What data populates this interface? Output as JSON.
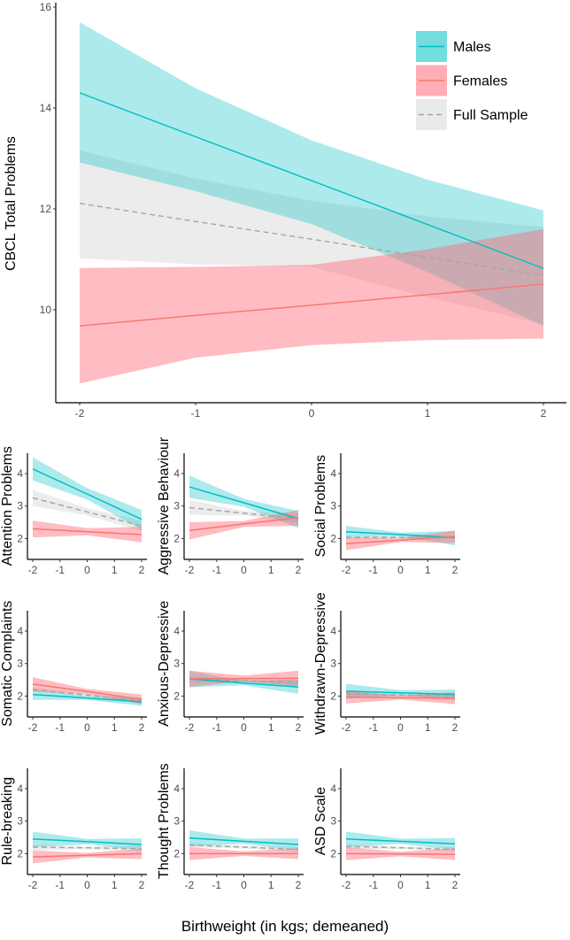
{
  "xlabel": "Birthweight (in kgs; demeaned)",
  "colors": {
    "Males": "#00BFC4",
    "Females": "#F8766D",
    "Full Sample": "#A6A6A6",
    "males_fill": "#00BFC4",
    "females_fill": "#FF6B78",
    "full_fill": "#D9D9D9"
  },
  "chart_data": [
    {
      "type": "line",
      "ylabel": "CBCL Total Problems",
      "x": [
        -2,
        -1,
        0,
        1,
        2
      ],
      "xlim": [
        -2.2,
        2.2
      ],
      "ylim": [
        8.16,
        16.1
      ],
      "xticks": [
        "-2",
        "-1",
        "0",
        "1",
        "2"
      ],
      "yticks": [
        "10",
        "12",
        "14",
        "16"
      ],
      "legend": {
        "position": "top-right",
        "entries": [
          "Males",
          "Females",
          "Full Sample"
        ]
      },
      "series": [
        {
          "name": "Males",
          "fit": [
            14.3,
            13.43,
            12.56,
            11.69,
            10.82
          ],
          "upper": [
            15.7,
            14.39,
            13.36,
            12.58,
            11.97
          ],
          "lower": [
            12.92,
            12.35,
            11.7,
            10.75,
            9.68
          ]
        },
        {
          "name": "Females",
          "fit": [
            9.68,
            9.89,
            10.09,
            10.3,
            10.51
          ],
          "upper": [
            10.83,
            10.85,
            10.89,
            11.2,
            11.6
          ],
          "lower": [
            8.54,
            9.05,
            9.3,
            9.4,
            9.43
          ]
        },
        {
          "name": "Full Sample",
          "fit": [
            12.11,
            11.75,
            11.4,
            11.04,
            10.68
          ],
          "upper": [
            13.16,
            12.6,
            12.16,
            11.85,
            11.64
          ],
          "lower": [
            11.02,
            10.9,
            10.85,
            10.25,
            9.72
          ]
        }
      ]
    },
    {
      "type": "line",
      "ylabel": "Attention Problems",
      "x": [
        -2,
        0,
        2
      ],
      "xticks": [
        "-2",
        "-1",
        "0",
        "1",
        "2"
      ],
      "yticks": [
        "2",
        "3",
        "4"
      ],
      "ylim": [
        1.57,
        4.62
      ],
      "series": [
        {
          "name": "Males",
          "fit": [
            4.14,
            3.37,
            2.59
          ],
          "upper": [
            4.5,
            3.55,
            2.88
          ],
          "lower": [
            3.79,
            3.2,
            2.27
          ]
        },
        {
          "name": "Females",
          "fit": [
            2.3,
            2.21,
            2.12
          ],
          "upper": [
            2.55,
            2.32,
            2.36
          ],
          "lower": [
            2.03,
            2.1,
            1.88
          ]
        },
        {
          "name": "Full Sample",
          "fit": [
            3.25,
            2.82,
            2.39
          ],
          "upper": [
            3.5,
            2.93,
            2.55
          ],
          "lower": [
            3.0,
            2.71,
            2.23
          ]
        }
      ]
    },
    {
      "type": "line",
      "ylabel": "Aggressive Behaviour",
      "x": [
        -2,
        0,
        2
      ],
      "xticks": [
        "-2",
        "-1",
        "0",
        "1",
        "2"
      ],
      "yticks": [
        "2",
        "3",
        "4"
      ],
      "ylim": [
        1.57,
        4.62
      ],
      "series": [
        {
          "name": "Males",
          "fit": [
            3.59,
            3.1,
            2.61
          ],
          "upper": [
            3.94,
            3.22,
            2.85
          ],
          "lower": [
            3.25,
            2.98,
            2.32
          ]
        },
        {
          "name": "Females",
          "fit": [
            2.25,
            2.45,
            2.64
          ],
          "upper": [
            2.5,
            2.54,
            2.88
          ],
          "lower": [
            1.97,
            2.36,
            2.39
          ]
        },
        {
          "name": "Full Sample",
          "fit": [
            2.95,
            2.78,
            2.61
          ],
          "upper": [
            3.18,
            2.85,
            2.77
          ],
          "lower": [
            2.73,
            2.71,
            2.45
          ]
        }
      ]
    },
    {
      "type": "line",
      "ylabel": "Social Problems",
      "x": [
        -2,
        0,
        2
      ],
      "xticks": [
        "-2",
        "-1",
        "0",
        "1",
        "2"
      ],
      "yticks": [
        "2",
        "3",
        "4"
      ],
      "ylim": [
        1.57,
        4.62
      ],
      "series": [
        {
          "name": "Males",
          "fit": [
            2.21,
            2.12,
            2.03
          ],
          "upper": [
            2.39,
            2.18,
            2.23
          ],
          "lower": [
            2.05,
            2.06,
            1.79
          ]
        },
        {
          "name": "Females",
          "fit": [
            1.84,
            1.95,
            2.06
          ],
          "upper": [
            2.03,
            2.01,
            2.25
          ],
          "lower": [
            1.64,
            1.89,
            1.86
          ]
        },
        {
          "name": "Full Sample",
          "fit": [
            2.03,
            2.03,
            2.03
          ],
          "upper": [
            2.08,
            2.06,
            2.08
          ],
          "lower": [
            1.98,
            2.0,
            1.98
          ]
        }
      ]
    },
    {
      "type": "line",
      "ylabel": "Somatic Complaints",
      "x": [
        -2,
        0,
        2
      ],
      "xticks": [
        "-2",
        "-1",
        "0",
        "1",
        "2"
      ],
      "yticks": [
        "2",
        "3",
        "4"
      ],
      "ylim": [
        1.57,
        4.62
      ],
      "series": [
        {
          "name": "Males",
          "fit": [
            2.05,
            1.94,
            1.82
          ],
          "upper": [
            2.2,
            2.0,
            1.95
          ],
          "lower": [
            1.88,
            1.88,
            1.7
          ]
        },
        {
          "name": "Females",
          "fit": [
            2.37,
            2.14,
            1.9
          ],
          "upper": [
            2.58,
            2.22,
            2.05
          ],
          "lower": [
            2.15,
            2.06,
            1.75
          ]
        },
        {
          "name": "Full Sample",
          "fit": [
            2.2,
            2.03,
            1.85
          ],
          "upper": [
            2.27,
            2.07,
            1.92
          ],
          "lower": [
            2.13,
            1.99,
            1.78
          ]
        }
      ]
    },
    {
      "type": "line",
      "ylabel": "Anxious-Depressive",
      "x": [
        -2,
        0,
        2
      ],
      "xticks": [
        "-2",
        "-1",
        "0",
        "1",
        "2"
      ],
      "yticks": [
        "2",
        "3",
        "4"
      ],
      "ylim": [
        1.57,
        4.62
      ],
      "series": [
        {
          "name": "Males",
          "fit": [
            2.53,
            2.4,
            2.28
          ],
          "upper": [
            2.78,
            2.47,
            2.5
          ],
          "lower": [
            2.27,
            2.33,
            2.07
          ]
        },
        {
          "name": "Females",
          "fit": [
            2.53,
            2.54,
            2.55
          ],
          "upper": [
            2.78,
            2.63,
            2.78
          ],
          "lower": [
            2.28,
            2.45,
            2.3
          ]
        },
        {
          "name": "Full Sample",
          "fit": [
            2.52,
            2.47,
            2.42
          ],
          "upper": [
            2.62,
            2.52,
            2.52
          ],
          "lower": [
            2.42,
            2.42,
            2.32
          ]
        }
      ]
    },
    {
      "type": "line",
      "ylabel": "Withdrawn-Depressive",
      "x": [
        -2,
        0,
        2
      ],
      "xticks": [
        "-2",
        "-1",
        "0",
        "1",
        "2"
      ],
      "yticks": [
        "2",
        "3",
        "4"
      ],
      "ylim": [
        1.57,
        4.62
      ],
      "series": [
        {
          "name": "Males",
          "fit": [
            2.15,
            2.1,
            2.05
          ],
          "upper": [
            2.38,
            2.18,
            2.2
          ],
          "lower": [
            1.92,
            2.02,
            1.88
          ]
        },
        {
          "name": "Females",
          "fit": [
            1.97,
            1.95,
            1.93
          ],
          "upper": [
            2.15,
            2.01,
            2.12
          ],
          "lower": [
            1.77,
            1.89,
            1.75
          ]
        },
        {
          "name": "Full Sample",
          "fit": [
            2.07,
            2.03,
            2.0
          ],
          "upper": [
            2.13,
            2.06,
            2.06
          ],
          "lower": [
            2.01,
            2.0,
            1.94
          ]
        }
      ]
    },
    {
      "type": "line",
      "ylabel": "Rule-breaking",
      "x": [
        -2,
        0,
        2
      ],
      "xticks": [
        "-2",
        "-1",
        "0",
        "1",
        "2"
      ],
      "yticks": [
        "2",
        "3",
        "4"
      ],
      "ylim": [
        1.57,
        4.62
      ],
      "series": [
        {
          "name": "Males",
          "fit": [
            2.45,
            2.37,
            2.28
          ],
          "upper": [
            2.68,
            2.45,
            2.47
          ],
          "lower": [
            2.2,
            2.29,
            2.1
          ]
        },
        {
          "name": "Females",
          "fit": [
            1.9,
            1.95,
            2.0
          ],
          "upper": [
            2.1,
            2.02,
            2.15
          ],
          "lower": [
            1.7,
            1.88,
            1.83
          ]
        },
        {
          "name": "Full Sample",
          "fit": [
            2.2,
            2.18,
            2.15
          ],
          "upper": [
            2.28,
            2.22,
            2.25
          ],
          "lower": [
            2.1,
            2.14,
            2.05
          ]
        }
      ]
    },
    {
      "type": "line",
      "ylabel": "Thought Problems",
      "x": [
        -2,
        0,
        2
      ],
      "xticks": [
        "-2",
        "-1",
        "0",
        "1",
        "2"
      ],
      "yticks": [
        "2",
        "3",
        "4"
      ],
      "ylim": [
        1.57,
        4.62
      ],
      "series": [
        {
          "name": "Males",
          "fit": [
            2.48,
            2.38,
            2.28
          ],
          "upper": [
            2.72,
            2.46,
            2.47
          ],
          "lower": [
            2.23,
            2.3,
            2.1
          ]
        },
        {
          "name": "Females",
          "fit": [
            2.0,
            2.0,
            2.0
          ],
          "upper": [
            2.2,
            2.07,
            2.17
          ],
          "lower": [
            1.8,
            1.93,
            1.83
          ]
        },
        {
          "name": "Full Sample",
          "fit": [
            2.26,
            2.2,
            2.13
          ],
          "upper": [
            2.33,
            2.24,
            2.2
          ],
          "lower": [
            2.19,
            2.16,
            2.06
          ]
        }
      ]
    },
    {
      "type": "line",
      "ylabel": "ASD Scale",
      "x": [
        -2,
        0,
        2
      ],
      "xticks": [
        "-2",
        "-1",
        "0",
        "1",
        "2"
      ],
      "yticks": [
        "2",
        "3",
        "4"
      ],
      "ylim": [
        1.57,
        4.62
      ],
      "series": [
        {
          "name": "Males",
          "fit": [
            2.45,
            2.38,
            2.3
          ],
          "upper": [
            2.68,
            2.46,
            2.48
          ],
          "lower": [
            2.2,
            2.3,
            2.12
          ]
        },
        {
          "name": "Females",
          "fit": [
            2.0,
            1.99,
            1.98
          ],
          "upper": [
            2.2,
            2.06,
            2.17
          ],
          "lower": [
            1.8,
            1.92,
            1.8
          ]
        },
        {
          "name": "Full Sample",
          "fit": [
            2.22,
            2.18,
            2.13
          ],
          "upper": [
            2.29,
            2.22,
            2.2
          ],
          "lower": [
            2.15,
            2.14,
            2.06
          ]
        }
      ]
    }
  ]
}
